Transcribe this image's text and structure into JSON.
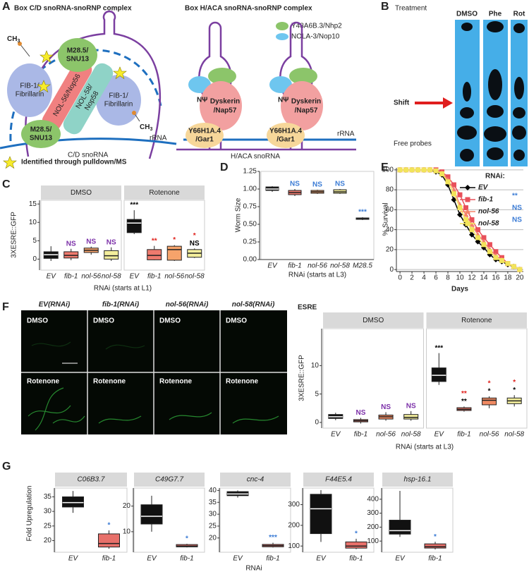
{
  "panel_labels": [
    "A",
    "B",
    "C",
    "D",
    "E",
    "F",
    "G"
  ],
  "panel_a": {
    "cd_title": "Box C/D snoRNA-snoRNP complex",
    "haca_title": "Box H/ACA snoRNA-snoRNP complex",
    "methyl": "CH",
    "methyl_sub": "3",
    "fib1": [
      "FIB-1/",
      "Fibrillarin"
    ],
    "m28": [
      "M28.5/",
      "SNU13"
    ],
    "nol56": "NOL-56/Nop56",
    "nol58": [
      "NOL-58/",
      "Nop58"
    ],
    "rrna": "rRNA",
    "cd_snorna": "C/D snoRNA",
    "star_note": "Identified through pulldown/MS",
    "legend": [
      "Y48A6B.3/Nhp2",
      "NOLA-3/Nop10"
    ],
    "npsi": "NΨ",
    "dyskerin": [
      "Dyskerin",
      "/Nap57"
    ],
    "gar1": [
      "Y66H1A.4",
      "/Gar1"
    ],
    "haca_snorna": "H/ACA snoRNA"
  },
  "panel_b": {
    "treatment": "Treatment",
    "lanes": [
      "DMSO",
      "Phe",
      "Rot"
    ],
    "shift": "Shift",
    "free_probes": "Free probes"
  },
  "panel_c": {
    "ylabel": "3XESRE::GFP",
    "xlabel": "RNAi (starts at L1)",
    "ylim": [
      -3,
      16
    ],
    "yticks": [
      0,
      5,
      10,
      15
    ],
    "facets": [
      {
        "name": "DMSO",
        "boxes": [
          {
            "category": "EV",
            "fill": "#111111",
            "min": -0.5,
            "q1": 0.2,
            "median": 1.2,
            "q3": 2,
            "max": 3.5
          },
          {
            "category": "fib-1",
            "fill": "#ef7a6e",
            "min": -0.3,
            "q1": 0.3,
            "median": 1,
            "q3": 2,
            "max": 2.8,
            "sig": [
              "NS"
            ],
            "sig_colors": [
              "#7b2fa8"
            ]
          },
          {
            "category": "nol-56",
            "fill": "#f6a36b",
            "min": 1.2,
            "q1": 1.8,
            "median": 2.4,
            "q3": 3,
            "max": 3.4,
            "sig": [
              "NS"
            ],
            "sig_colors": [
              "#7b2fa8"
            ]
          },
          {
            "category": "nol-58",
            "fill": "#f3ee9c",
            "min": -0.5,
            "q1": 0,
            "median": 0.9,
            "q3": 2.3,
            "max": 3.2,
            "sig": [
              "NS"
            ],
            "sig_colors": [
              "#7b2fa8"
            ]
          }
        ]
      },
      {
        "name": "Rotenone",
        "boxes": [
          {
            "category": "EV",
            "fill": "#111111",
            "min": 6.8,
            "q1": 7.2,
            "median": 9.8,
            "q3": 10.8,
            "max": 13.3,
            "sig": [
              "***"
            ],
            "sig_colors": [
              "#000000"
            ]
          },
          {
            "category": "fib-1",
            "fill": "#ef7a6e",
            "min": -0.3,
            "q1": -0.2,
            "median": 1,
            "q3": 2.6,
            "max": 3.6,
            "sig": [
              "**"
            ],
            "sig_colors": [
              "#e0201b"
            ]
          },
          {
            "category": "nol-56",
            "fill": "#f6a36b",
            "min": -0.5,
            "q1": -0.3,
            "median": 2.6,
            "q3": 3.5,
            "max": 3.8,
            "sig": [
              "*"
            ],
            "sig_colors": [
              "#e0201b"
            ]
          },
          {
            "category": "nol-58",
            "fill": "#f3ee9c",
            "min": 0.3,
            "q1": 0.5,
            "median": 1.6,
            "q3": 2.6,
            "max": 2.9,
            "sig": [
              "*",
              "NS"
            ],
            "sig_colors": [
              "#e0201b",
              "#000000"
            ]
          }
        ]
      }
    ]
  },
  "panel_d": {
    "ylabel": "Worm Size",
    "xlabel": "RNAi (starts at L3)",
    "ylim": [
      0,
      1.25
    ],
    "yticks": [
      {
        "value": 0,
        "label": "0.00"
      },
      {
        "value": 0.25,
        "label": "0.25"
      },
      {
        "value": 0.5,
        "label": "0.50"
      },
      {
        "value": 0.75,
        "label": "0.75"
      },
      {
        "value": 1,
        "label": "1.00"
      },
      {
        "value": 1.25,
        "label": "1.25"
      }
    ],
    "boxes": [
      {
        "category": "EV",
        "fill": "#111111",
        "min": 0.96,
        "q1": 0.98,
        "median": 1,
        "q3": 1.03,
        "max": 1.04
      },
      {
        "category": "fib-1",
        "fill": "#ef7a6e",
        "min": 0.9,
        "q1": 0.92,
        "median": 0.95,
        "q3": 0.98,
        "max": 1,
        "sig": [
          "NS"
        ],
        "sig_colors": [
          "#3a7bd5"
        ]
      },
      {
        "category": "nol-56",
        "fill": "#f6a36b",
        "min": 0.93,
        "q1": 0.94,
        "median": 0.96,
        "q3": 0.98,
        "max": 0.99,
        "sig": [
          "NS"
        ],
        "sig_colors": [
          "#3a7bd5"
        ]
      },
      {
        "category": "nol-58",
        "fill": "#f3ee9c",
        "min": 0.93,
        "q1": 0.94,
        "median": 0.96,
        "q3": 0.99,
        "max": 1,
        "sig": [
          "NS"
        ],
        "sig_colors": [
          "#3a7bd5"
        ]
      },
      {
        "category": "M28.5",
        "fill": "#f0b070",
        "min": 0.56,
        "q1": 0.57,
        "median": 0.58,
        "q3": 0.59,
        "max": 0.6,
        "sig": [
          "***"
        ],
        "sig_colors": [
          "#3a7bd5"
        ]
      }
    ]
  },
  "panel_e": {
    "type": "line",
    "ylabel": "% Survival",
    "xlabel": "Days",
    "legend_title": "RNAi:",
    "xlim": [
      -0.6,
      20.6
    ],
    "ylim": [
      -2,
      102
    ],
    "xticks": [
      0,
      2,
      4,
      6,
      8,
      10,
      12,
      14,
      16,
      18,
      20
    ],
    "yticks": [
      0,
      20,
      40,
      60,
      80,
      100
    ],
    "grid": true,
    "x": [
      0,
      1,
      2,
      3,
      4,
      5,
      6,
      7,
      8,
      9,
      10,
      11,
      12,
      13,
      14,
      15,
      16,
      17,
      18,
      19,
      20
    ],
    "series": [
      {
        "name": "EV",
        "color": "#000000",
        "marker": "diamond",
        "values": [
          100,
          100,
          100,
          100,
          100,
          100,
          98,
          95,
          85,
          70,
          55,
          45,
          35,
          28,
          22,
          15,
          10,
          8,
          5,
          3,
          0
        ]
      },
      {
        "name": "fib-1",
        "color": "#e8505a",
        "marker": "square",
        "sig": "**",
        "sig_color": "#3a7bd5",
        "values": [
          100,
          100,
          100,
          100,
          100,
          100,
          100,
          98,
          93,
          85,
          75,
          62,
          50,
          40,
          32,
          25,
          18,
          12,
          6,
          3,
          0
        ]
      },
      {
        "name": "nol-56",
        "color": "#f4836a",
        "marker": "triangle",
        "sig": "NS",
        "sig_color": "#3a7bd5",
        "values": [
          100,
          100,
          100,
          100,
          100,
          100,
          99,
          97,
          90,
          80,
          65,
          55,
          45,
          35,
          28,
          20,
          14,
          10,
          6,
          3,
          0
        ]
      },
      {
        "name": "nol-58",
        "color": "#f2e45a",
        "marker": "square",
        "sig": "NS",
        "sig_color": "#3a7bd5",
        "values": [
          100,
          100,
          100,
          100,
          100,
          100,
          99,
          96,
          88,
          76,
          62,
          50,
          40,
          32,
          25,
          18,
          12,
          9,
          6,
          3,
          0
        ]
      }
    ]
  },
  "panel_f": {
    "columns": [
      "EV(RNAi)",
      "fib-1(RNAi)",
      "nol-56(RNAi)",
      "nol-58(RNAi)"
    ],
    "rows": [
      "DMSO",
      "Rotenone"
    ],
    "title": "ESRE",
    "ylabel": "3XESRE::GFP",
    "xlabel": "RNAi (starts at L3)",
    "ylim": [
      -1,
      16.5
    ],
    "yticks": [
      0,
      5,
      10
    ],
    "facets": [
      {
        "name": "DMSO",
        "boxes": [
          {
            "category": "EV",
            "fill": "#111111",
            "min": 0.4,
            "q1": 0.7,
            "median": 1,
            "q3": 1.4,
            "max": 1.7
          },
          {
            "category": "fib-1",
            "fill": "#e8705f",
            "min": -0.2,
            "q1": 0.1,
            "median": 0.3,
            "q3": 0.5,
            "max": 0.8,
            "sig": [
              "NS"
            ],
            "sig_colors": [
              "#7b2fa8"
            ]
          },
          {
            "category": "nol-56",
            "fill": "#f08a62",
            "min": 0.3,
            "q1": 0.6,
            "median": 1,
            "q3": 1.3,
            "max": 1.8,
            "sig": [
              "NS"
            ],
            "sig_colors": [
              "#7b2fa8"
            ]
          },
          {
            "category": "nol-58",
            "fill": "#f3ee9c",
            "min": 0.3,
            "q1": 0.6,
            "median": 0.9,
            "q3": 1.4,
            "max": 2,
            "sig": [
              "NS"
            ],
            "sig_colors": [
              "#7b2fa8"
            ]
          }
        ]
      },
      {
        "name": "Rotenone",
        "boxes": [
          {
            "category": "EV",
            "fill": "#111111",
            "min": 6.6,
            "q1": 7.2,
            "median": 8.3,
            "q3": 9.6,
            "max": 12.2,
            "sig": [
              "***"
            ],
            "sig_colors": [
              "#000000"
            ]
          },
          {
            "category": "fib-1",
            "fill": "#e8705f",
            "min": 1.9,
            "q1": 2.1,
            "median": 2.3,
            "q3": 2.6,
            "max": 2.8,
            "sig": [
              "**",
              "**"
            ],
            "sig_colors": [
              "#e0201b",
              "#000000"
            ]
          },
          {
            "category": "nol-56",
            "fill": "#f08a62",
            "min": 2.5,
            "q1": 3.1,
            "median": 3.9,
            "q3": 4.3,
            "max": 4.6,
            "sig": [
              "*",
              "*"
            ],
            "sig_colors": [
              "#e0201b",
              "#000000"
            ]
          },
          {
            "category": "nol-58",
            "fill": "#f3ee9c",
            "min": 2.8,
            "q1": 3.3,
            "median": 3.8,
            "q3": 4.3,
            "max": 4.8,
            "sig": [
              "*",
              "*"
            ],
            "sig_colors": [
              "#e0201b",
              "#000000"
            ]
          }
        ]
      }
    ]
  },
  "panel_g": {
    "ylabel": "Fold Upregulation",
    "xlabel": "RNAi",
    "genes": [
      {
        "name": "C06B3.7",
        "ylim": [
          16,
          38
        ],
        "yticks": [
          20,
          25,
          30,
          35
        ],
        "boxes": [
          {
            "category": "EV",
            "fill": "#111111",
            "min": 29.5,
            "q1": 31.5,
            "median": 33,
            "q3": 35,
            "max": 37
          },
          {
            "category": "fib-1",
            "fill": "#e8706a",
            "min": 17.2,
            "q1": 17.8,
            "median": 19,
            "q3": 22.3,
            "max": 23.5,
            "sig": [
              "*"
            ],
            "sig_colors": [
              "#3a7bd5"
            ]
          }
        ]
      },
      {
        "name": "C49G7.7",
        "ylim": [
          2,
          27
        ],
        "yticks": [
          10,
          20
        ],
        "boxes": [
          {
            "category": "EV",
            "fill": "#111111",
            "min": 10,
            "q1": 13,
            "median": 16,
            "q3": 20.5,
            "max": 24
          },
          {
            "category": "fib-1",
            "fill": "#e8706a",
            "min": 3.9,
            "q1": 4.1,
            "median": 4.4,
            "q3": 5,
            "max": 5.3,
            "sig": [
              "*"
            ],
            "sig_colors": [
              "#3a7bd5"
            ]
          }
        ]
      },
      {
        "name": "cnc-4",
        "ylim": [
          14,
          41
        ],
        "yticks": [
          20,
          25,
          30,
          35,
          40
        ],
        "boxes": [
          {
            "category": "EV",
            "fill": "#111111",
            "min": 37,
            "q1": 37.8,
            "median": 38.5,
            "q3": 39.5,
            "max": 40
          },
          {
            "category": "fib-1",
            "fill": "#e8706a",
            "min": 16,
            "q1": 16.3,
            "median": 16.8,
            "q3": 17.3,
            "max": 18,
            "sig": [
              "***"
            ],
            "sig_colors": [
              "#3a7bd5"
            ]
          }
        ]
      },
      {
        "name": "F44E5.4",
        "ylim": [
          70,
          380
        ],
        "yticks": [
          100,
          200,
          300
        ],
        "boxes": [
          {
            "category": "EV",
            "fill": "#111111",
            "min": 120,
            "q1": 160,
            "median": 280,
            "q3": 350,
            "max": 370
          },
          {
            "category": "fib-1",
            "fill": "#e8706a",
            "min": 85,
            "q1": 90,
            "median": 100,
            "q3": 120,
            "max": 135,
            "sig": [
              "*"
            ],
            "sig_colors": [
              "#3a7bd5"
            ]
          }
        ]
      },
      {
        "name": "hsp-16.1",
        "ylim": [
          20,
          480
        ],
        "yticks": [
          100,
          200,
          300,
          400
        ],
        "boxes": [
          {
            "category": "EV",
            "fill": "#111111",
            "min": 130,
            "q1": 150,
            "median": 175,
            "q3": 250,
            "max": 460
          },
          {
            "category": "fib-1",
            "fill": "#e8706a",
            "min": 40,
            "q1": 50,
            "median": 60,
            "q3": 80,
            "max": 95,
            "sig": [
              "*"
            ],
            "sig_colors": [
              "#3a7bd5"
            ]
          }
        ]
      }
    ]
  }
}
